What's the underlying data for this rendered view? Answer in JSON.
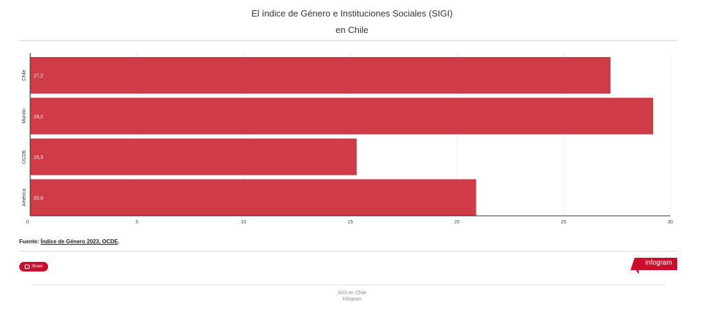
{
  "header": {
    "title": "El índice de Género e Instituciones Sociales (SIGI)",
    "subtitle": "en Chile"
  },
  "chart_data": {
    "type": "bar",
    "orientation": "horizontal",
    "categories": [
      "Chile",
      "Mundo",
      "OCDE",
      "América"
    ],
    "values": [
      27.2,
      29.2,
      15.3,
      20.9
    ],
    "data_labels": [
      "27,2",
      "29,2",
      "15,3",
      "20,9"
    ],
    "xlim": [
      0,
      30
    ],
    "ticks": [
      0,
      5,
      10,
      15,
      20,
      25,
      30
    ],
    "grid": true,
    "bar_color": "#cf3b46",
    "title": "El índice de Género e Instituciones Sociales (SIGI)",
    "subtitle": "en Chile",
    "xlabel": "",
    "ylabel": ""
  },
  "source": {
    "prefix": "Fuente: ",
    "link_text": "Índice de Género 2023, OCDE",
    "suffix": "."
  },
  "share": {
    "label": "Share"
  },
  "brand": {
    "name": "infogram",
    "color": "#c8102e"
  },
  "footer": {
    "line1": "SIGI en Chile",
    "line2": "Infogram"
  }
}
